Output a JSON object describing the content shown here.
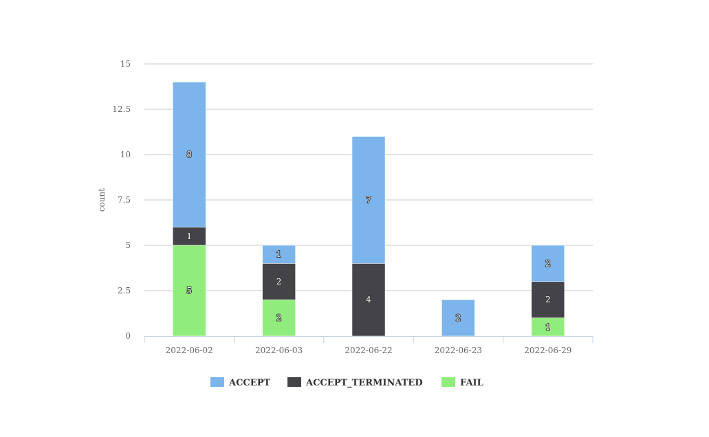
{
  "chart_data": {
    "type": "bar",
    "stacked": true,
    "categories": [
      "2022-06-02",
      "2022-06-03",
      "2022-06-22",
      "2022-06-23",
      "2022-06-29"
    ],
    "series": [
      {
        "name": "FAIL",
        "color": "#90ed7d",
        "values": [
          5,
          2,
          0,
          0,
          1
        ]
      },
      {
        "name": "ACCEPT_TERMINATED",
        "color": "#434348",
        "values": [
          1,
          2,
          4,
          0,
          2
        ]
      },
      {
        "name": "ACCEPT",
        "color": "#7cb5ec",
        "values": [
          8,
          1,
          7,
          2,
          2
        ]
      }
    ],
    "legend_order": [
      "ACCEPT",
      "ACCEPT_TERMINATED",
      "FAIL"
    ],
    "xlabel": "",
    "ylabel": "count",
    "ylim": [
      0,
      15
    ],
    "yticks": [
      "0",
      "2.5",
      "5",
      "7.5",
      "10",
      "12.5",
      "15"
    ],
    "grid": true,
    "legend_position": "bottom-center",
    "data_labels": true
  }
}
